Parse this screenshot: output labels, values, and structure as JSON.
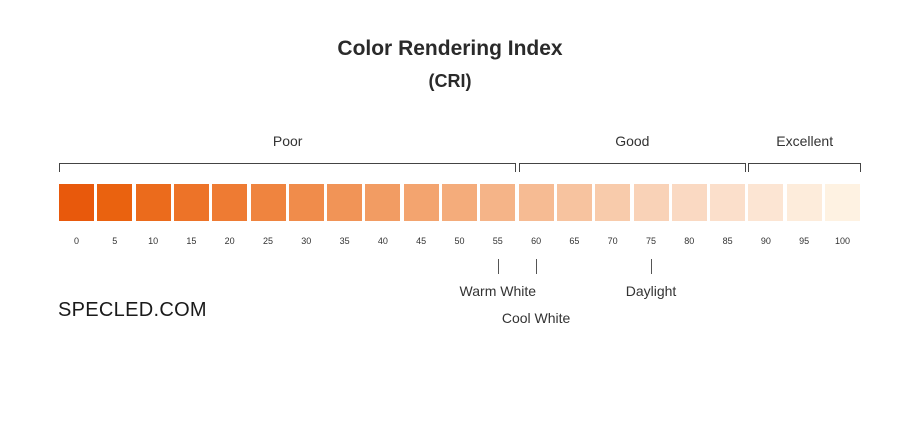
{
  "title": "Color Rendering Index",
  "subtitle": "(CRI)",
  "groups": [
    {
      "label": "Poor",
      "from": 0,
      "to": 55
    },
    {
      "label": "Good",
      "from": 60,
      "to": 85
    },
    {
      "label": "Excellent",
      "from": 90,
      "to": 100
    }
  ],
  "scale": {
    "ticks": [
      "0",
      "5",
      "10",
      "15",
      "20",
      "25",
      "30",
      "35",
      "40",
      "45",
      "50",
      "55",
      "60",
      "65",
      "70",
      "75",
      "80",
      "85",
      "90",
      "95",
      "100"
    ],
    "colors": [
      "#e8590c",
      "#ea620f",
      "#eb6b1c",
      "#ed7328",
      "#ee7b33",
      "#ef843f",
      "#f08c4b",
      "#f19457",
      "#f29c63",
      "#f3a46f",
      "#f4ac7b",
      "#f5b488",
      "#f6bb93",
      "#f7c39f",
      "#f8cbab",
      "#f9d2b7",
      "#fad9c2",
      "#fbdfcb",
      "#fce5d3",
      "#fdecdb",
      "#fef2e2"
    ]
  },
  "markers": [
    {
      "label": "Warm White",
      "value": 55
    },
    {
      "label": "Cool White",
      "value": 60
    },
    {
      "label": "Daylight",
      "value": 75
    }
  ],
  "logo": "SPECLED.COM"
}
